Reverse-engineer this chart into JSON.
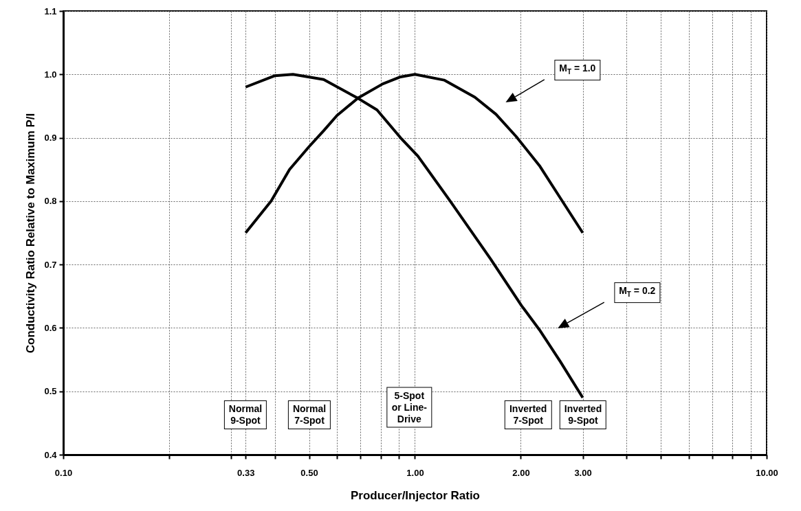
{
  "chart_data": {
    "type": "line",
    "xlabel": "Producer/Injector Ratio",
    "ylabel": "Conductivity Ratio Relative to Maximum P/I",
    "log": "x",
    "grid": true,
    "line_style": "solid",
    "xlim": [
      0.1,
      10
    ],
    "ylim": [
      0.4,
      1.1
    ],
    "xticks": [
      {
        "value": 0.1,
        "label": "0.10"
      },
      {
        "value": 0.2,
        "label": null
      },
      {
        "value": 0.3,
        "label": null
      },
      {
        "value": 0.33,
        "label": "0.33"
      },
      {
        "value": 0.4,
        "label": null
      },
      {
        "value": 0.5,
        "label": "0.50"
      },
      {
        "value": 0.6,
        "label": null
      },
      {
        "value": 0.7,
        "label": null
      },
      {
        "value": 0.8,
        "label": null
      },
      {
        "value": 0.9,
        "label": null
      },
      {
        "value": 1,
        "label": "1.00"
      },
      {
        "value": 2,
        "label": "2.00"
      },
      {
        "value": 3,
        "label": "3.00"
      },
      {
        "value": 4,
        "label": null
      },
      {
        "value": 5,
        "label": null
      },
      {
        "value": 6,
        "label": null
      },
      {
        "value": 7,
        "label": null
      },
      {
        "value": 8,
        "label": null
      },
      {
        "value": 9,
        "label": null
      },
      {
        "value": 10,
        "label": "10.00"
      }
    ],
    "yticks": [
      0.4,
      0.5,
      0.6,
      0.7,
      0.8,
      0.9,
      {
        "value": 1,
        "label": "1.0"
      },
      1.1
    ],
    "series": [
      {
        "color": "#000000",
        "x": [
          0.33,
          0.39,
          0.44,
          0.5,
          0.55,
          0.6,
          0.69,
          0.81,
          0.91,
          1,
          1.21,
          1.48,
          1.7,
          1.94,
          2.26,
          2.59,
          3
        ],
        "values": [
          0.75,
          0.8,
          0.85,
          0.886,
          0.911,
          0.935,
          0.963,
          0.985,
          0.996,
          1,
          0.991,
          0.964,
          0.937,
          0.902,
          0.856,
          0.805,
          0.75
        ]
      },
      {
        "color": "#000000",
        "x": [
          0.33,
          0.4,
          0.45,
          0.55,
          0.69,
          0.78,
          0.91,
          1.02,
          1.26,
          1.64,
          2.01,
          2.26,
          2.59,
          3
        ],
        "values": [
          0.98,
          0.998,
          1,
          0.992,
          0.962,
          0.944,
          0.9,
          0.871,
          0.8,
          0.709,
          0.635,
          0.597,
          0.547,
          0.49
        ]
      }
    ],
    "annotations": [
      "M$_{T}$ = 1.0",
      "M$_{T}$ = 0.2",
      "Normal\n9-Spot",
      "Normal\n7-Spot",
      "5-Spot\nor Line-\nDrive",
      "Inverted\n7-Spot",
      "Inverted\n9-Spot"
    ]
  }
}
